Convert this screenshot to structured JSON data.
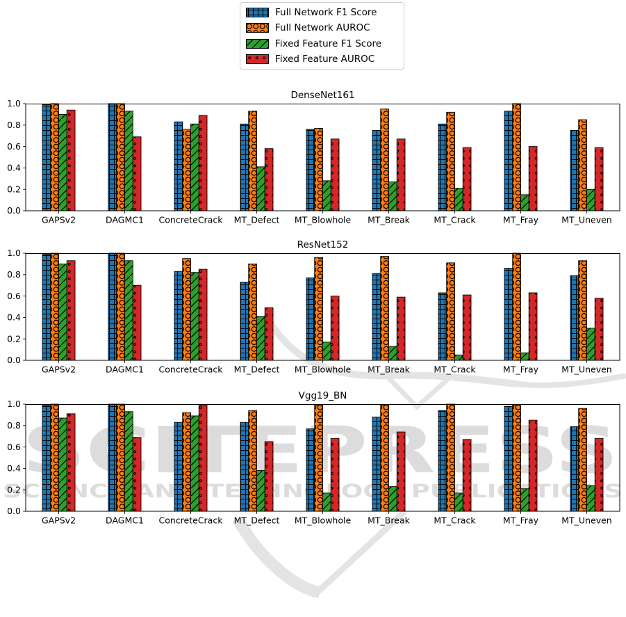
{
  "watermark": {
    "title": "SCITEPRESS",
    "subtitle": "SCIENCE AND TECHNOLOGY PUBLICATIONS",
    "color": "#dcdcdc"
  },
  "legend": {
    "items": [
      {
        "label": "Full Network F1 Score",
        "color": "#1f77b4",
        "hatch": "plus"
      },
      {
        "label": "Full Network AUROC",
        "color": "#ff7f0e",
        "hatch": "circle"
      },
      {
        "label": "Fixed Feature F1 Score",
        "color": "#2ca02c",
        "hatch": "slash"
      },
      {
        "label": "Fixed Feature AUROC",
        "color": "#d62728",
        "hatch": "dot"
      }
    ]
  },
  "chart_data": [
    {
      "type": "bar",
      "title": "DenseNet161",
      "categories": [
        "GAPSv2",
        "DAGMC1",
        "ConcreteCrack",
        "MT_Defect",
        "MT_Blowhole",
        "MT_Break",
        "MT_Crack",
        "MT_Fray",
        "MT_Uneven"
      ],
      "series": [
        {
          "name": "Full Network F1 Score",
          "color": "#1f77b4",
          "hatch": "plus",
          "values": [
            0.99,
            1.0,
            0.83,
            0.81,
            0.76,
            0.75,
            0.81,
            0.93,
            0.75
          ]
        },
        {
          "name": "Full Network AUROC",
          "color": "#ff7f0e",
          "hatch": "circle",
          "values": [
            1.0,
            1.0,
            0.76,
            0.93,
            0.77,
            0.95,
            0.92,
            1.0,
            0.85
          ]
        },
        {
          "name": "Fixed Feature F1 Score",
          "color": "#2ca02c",
          "hatch": "slash",
          "values": [
            0.9,
            0.93,
            0.81,
            0.41,
            0.28,
            0.27,
            0.21,
            0.15,
            0.2
          ]
        },
        {
          "name": "Fixed Feature AUROC",
          "color": "#d62728",
          "hatch": "dot",
          "values": [
            0.94,
            0.69,
            0.89,
            0.58,
            0.67,
            0.67,
            0.59,
            0.6,
            0.59
          ]
        }
      ],
      "ylim": [
        0.0,
        1.0
      ],
      "yticks": [
        0.0,
        0.2,
        0.4,
        0.6,
        0.8,
        1.0
      ],
      "grid": false,
      "legend_position": "figure-top-center"
    },
    {
      "type": "bar",
      "title": "ResNet152",
      "categories": [
        "GAPSv2",
        "DAGMC1",
        "ConcreteCrack",
        "MT_Defect",
        "MT_Blowhole",
        "MT_Break",
        "MT_Crack",
        "MT_Fray",
        "MT_Uneven"
      ],
      "series": [
        {
          "name": "Full Network F1 Score",
          "color": "#1f77b4",
          "hatch": "plus",
          "values": [
            0.99,
            1.0,
            0.83,
            0.73,
            0.77,
            0.81,
            0.63,
            0.86,
            0.79
          ]
        },
        {
          "name": "Full Network AUROC",
          "color": "#ff7f0e",
          "hatch": "circle",
          "values": [
            1.0,
            1.0,
            0.95,
            0.9,
            0.96,
            0.97,
            0.91,
            1.0,
            0.93
          ]
        },
        {
          "name": "Fixed Feature F1 Score",
          "color": "#2ca02c",
          "hatch": "slash",
          "values": [
            0.9,
            0.93,
            0.82,
            0.41,
            0.17,
            0.13,
            0.05,
            0.07,
            0.3
          ]
        },
        {
          "name": "Fixed Feature AUROC",
          "color": "#d62728",
          "hatch": "dot",
          "values": [
            0.93,
            0.7,
            0.85,
            0.49,
            0.6,
            0.59,
            0.61,
            0.63,
            0.58
          ]
        }
      ],
      "ylim": [
        0.0,
        1.0
      ],
      "yticks": [
        0.0,
        0.2,
        0.4,
        0.6,
        0.8,
        1.0
      ],
      "grid": false,
      "legend_position": "figure-top-center"
    },
    {
      "type": "bar",
      "title": "Vgg19_BN",
      "categories": [
        "GAPSv2",
        "DAGMC1",
        "ConcreteCrack",
        "MT_Defect",
        "MT_Blowhole",
        "MT_Break",
        "MT_Crack",
        "MT_Fray",
        "MT_Uneven"
      ],
      "series": [
        {
          "name": "Full Network F1 Score",
          "color": "#1f77b4",
          "hatch": "plus",
          "values": [
            0.99,
            1.0,
            0.83,
            0.83,
            0.77,
            0.88,
            0.94,
            0.98,
            0.79
          ]
        },
        {
          "name": "Full Network AUROC",
          "color": "#ff7f0e",
          "hatch": "circle",
          "values": [
            1.0,
            1.0,
            0.92,
            0.94,
            0.99,
            0.99,
            1.0,
            0.99,
            0.96
          ]
        },
        {
          "name": "Fixed Feature F1 Score",
          "color": "#2ca02c",
          "hatch": "slash",
          "values": [
            0.87,
            0.93,
            0.89,
            0.38,
            0.17,
            0.23,
            0.17,
            0.21,
            0.24
          ]
        },
        {
          "name": "Fixed Feature AUROC",
          "color": "#d62728",
          "hatch": "dot",
          "values": [
            0.91,
            0.69,
            0.99,
            0.65,
            0.68,
            0.74,
            0.67,
            0.85,
            0.68
          ]
        }
      ],
      "ylim": [
        0.0,
        1.0
      ],
      "yticks": [
        0.0,
        0.2,
        0.4,
        0.6,
        0.8,
        1.0
      ],
      "grid": false,
      "legend_position": "figure-top-center"
    }
  ]
}
